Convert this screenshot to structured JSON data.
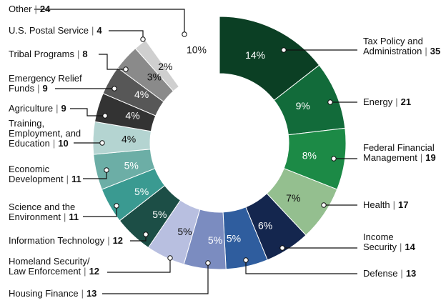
{
  "chart_data": {
    "type": "donut",
    "separator": "|",
    "categories": [
      [
        "Tax Policy and",
        "Administration"
      ],
      [
        "Energy"
      ],
      [
        "Federal Financial",
        "Management"
      ],
      [
        "Health"
      ],
      [
        "Income",
        "Security"
      ],
      [
        "Defense"
      ],
      [
        "Housing Finance"
      ],
      [
        "Homeland Security/",
        "Law Enforcement"
      ],
      [
        "Information Technology"
      ],
      [
        "Science and the",
        "Environment"
      ],
      [
        "Economic",
        "Development"
      ],
      [
        "Training,",
        "Employment, and",
        "Education"
      ],
      [
        "Agriculture"
      ],
      [
        "Emergency Relief",
        "Funds"
      ],
      [
        "Tribal Programs"
      ],
      [
        "U.S. Postal Service"
      ],
      [
        "Other"
      ]
    ],
    "values": [
      35,
      21,
      19,
      17,
      14,
      13,
      13,
      12,
      12,
      11,
      11,
      10,
      9,
      9,
      8,
      4,
      24
    ],
    "value_labels": [
      "14%",
      "9%",
      "8%",
      "7%",
      "6%",
      "5%",
      "5%",
      "5%",
      "5%",
      "5%",
      "5%",
      "4%",
      "4%",
      "4%",
      "3%",
      "2%",
      "10%"
    ],
    "colors": [
      "#0b3f24",
      "#126b3a",
      "#1c8a46",
      "#94bf8f",
      "#14264e",
      "#2f5d9e",
      "#7b8cc0",
      "#b8bfe0",
      "#1c4e46",
      "#3a9a91",
      "#6caea6",
      "#b4d4d1",
      "#333333",
      "#575757",
      "#8a8a8a",
      "#cfcfcf",
      "#ffffff"
    ]
  }
}
